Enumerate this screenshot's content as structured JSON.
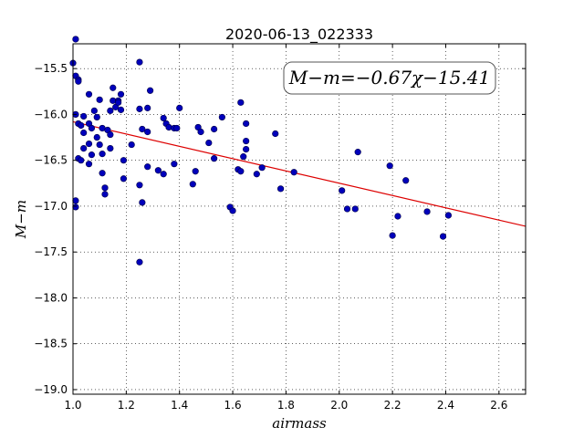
{
  "chart_data": {
    "type": "scatter",
    "title": "2020-06-13_022333",
    "xlabel": "airmass",
    "ylabel": "M−m",
    "xlim": [
      1.0,
      2.7
    ],
    "ylim": [
      -19.05,
      -15.23
    ],
    "x_ticks": [
      "1.0",
      "1.2",
      "1.4",
      "1.6",
      "1.8",
      "2.0",
      "2.2",
      "2.4",
      "2.6"
    ],
    "y_ticks": [
      "−15.5",
      "−16.0",
      "−16.5",
      "−17.0",
      "−17.5",
      "−18.0",
      "−18.5",
      "−19.0"
    ],
    "grid": true,
    "annotation": "M−m=−0.67χ−15.41",
    "fit": {
      "slope": -0.67,
      "intercept": -15.41,
      "x_range": [
        1.0,
        2.7
      ],
      "color": "#dd0000"
    },
    "point_color": "#0000bb",
    "points": [
      {
        "x": 1.0,
        "y": -15.44
      },
      {
        "x": 1.01,
        "y": -15.18
      },
      {
        "x": 1.01,
        "y": -15.58
      },
      {
        "x": 1.02,
        "y": -15.62
      },
      {
        "x": 1.02,
        "y": -15.64
      },
      {
        "x": 1.01,
        "y": -16.0
      },
      {
        "x": 1.02,
        "y": -16.1
      },
      {
        "x": 1.02,
        "y": -16.48
      },
      {
        "x": 1.01,
        "y": -16.94
      },
      {
        "x": 1.01,
        "y": -17.01
      },
      {
        "x": 1.03,
        "y": -16.12
      },
      {
        "x": 1.04,
        "y": -16.2
      },
      {
        "x": 1.03,
        "y": -16.5
      },
      {
        "x": 1.04,
        "y": -16.37
      },
      {
        "x": 1.04,
        "y": -16.02
      },
      {
        "x": 1.06,
        "y": -15.78
      },
      {
        "x": 1.06,
        "y": -16.1
      },
      {
        "x": 1.06,
        "y": -16.32
      },
      {
        "x": 1.06,
        "y": -16.54
      },
      {
        "x": 1.07,
        "y": -16.15
      },
      {
        "x": 1.07,
        "y": -16.44
      },
      {
        "x": 1.08,
        "y": -15.96
      },
      {
        "x": 1.09,
        "y": -16.03
      },
      {
        "x": 1.09,
        "y": -16.25
      },
      {
        "x": 1.1,
        "y": -16.33
      },
      {
        "x": 1.1,
        "y": -15.84
      },
      {
        "x": 1.11,
        "y": -16.15
      },
      {
        "x": 1.11,
        "y": -16.43
      },
      {
        "x": 1.11,
        "y": -16.64
      },
      {
        "x": 1.12,
        "y": -16.8
      },
      {
        "x": 1.12,
        "y": -16.87
      },
      {
        "x": 1.13,
        "y": -16.17
      },
      {
        "x": 1.14,
        "y": -16.22
      },
      {
        "x": 1.14,
        "y": -15.96
      },
      {
        "x": 1.14,
        "y": -16.37
      },
      {
        "x": 1.15,
        "y": -15.85
      },
      {
        "x": 1.15,
        "y": -15.71
      },
      {
        "x": 1.16,
        "y": -15.92
      },
      {
        "x": 1.17,
        "y": -15.85
      },
      {
        "x": 1.17,
        "y": -15.87
      },
      {
        "x": 1.18,
        "y": -15.95
      },
      {
        "x": 1.18,
        "y": -15.78
      },
      {
        "x": 1.19,
        "y": -16.5
      },
      {
        "x": 1.19,
        "y": -16.7
      },
      {
        "x": 1.22,
        "y": -16.33
      },
      {
        "x": 1.25,
        "y": -15.43
      },
      {
        "x": 1.25,
        "y": -15.94
      },
      {
        "x": 1.25,
        "y": -16.77
      },
      {
        "x": 1.25,
        "y": -17.61
      },
      {
        "x": 1.26,
        "y": -16.16
      },
      {
        "x": 1.26,
        "y": -16.96
      },
      {
        "x": 1.28,
        "y": -15.93
      },
      {
        "x": 1.28,
        "y": -16.19
      },
      {
        "x": 1.28,
        "y": -16.57
      },
      {
        "x": 1.29,
        "y": -15.74
      },
      {
        "x": 1.32,
        "y": -16.61
      },
      {
        "x": 1.34,
        "y": -16.04
      },
      {
        "x": 1.34,
        "y": -16.65
      },
      {
        "x": 1.35,
        "y": -16.1
      },
      {
        "x": 1.36,
        "y": -16.14
      },
      {
        "x": 1.38,
        "y": -16.15
      },
      {
        "x": 1.38,
        "y": -16.54
      },
      {
        "x": 1.39,
        "y": -16.15
      },
      {
        "x": 1.4,
        "y": -15.93
      },
      {
        "x": 1.45,
        "y": -16.76
      },
      {
        "x": 1.46,
        "y": -16.62
      },
      {
        "x": 1.47,
        "y": -16.14
      },
      {
        "x": 1.48,
        "y": -16.19
      },
      {
        "x": 1.51,
        "y": -16.31
      },
      {
        "x": 1.53,
        "y": -16.16
      },
      {
        "x": 1.53,
        "y": -16.48
      },
      {
        "x": 1.56,
        "y": -16.03
      },
      {
        "x": 1.59,
        "y": -17.01
      },
      {
        "x": 1.6,
        "y": -17.05
      },
      {
        "x": 1.62,
        "y": -16.6
      },
      {
        "x": 1.63,
        "y": -15.87
      },
      {
        "x": 1.63,
        "y": -16.62
      },
      {
        "x": 1.64,
        "y": -16.46
      },
      {
        "x": 1.65,
        "y": -16.1
      },
      {
        "x": 1.65,
        "y": -16.29
      },
      {
        "x": 1.65,
        "y": -16.38
      },
      {
        "x": 1.69,
        "y": -16.65
      },
      {
        "x": 1.71,
        "y": -16.58
      },
      {
        "x": 1.76,
        "y": -16.21
      },
      {
        "x": 1.78,
        "y": -16.81
      },
      {
        "x": 1.83,
        "y": -16.63
      },
      {
        "x": 2.01,
        "y": -16.83
      },
      {
        "x": 2.03,
        "y": -17.03
      },
      {
        "x": 2.06,
        "y": -17.03
      },
      {
        "x": 2.07,
        "y": -16.41
      },
      {
        "x": 2.19,
        "y": -16.56
      },
      {
        "x": 2.2,
        "y": -17.32
      },
      {
        "x": 2.22,
        "y": -17.11
      },
      {
        "x": 2.25,
        "y": -16.72
      },
      {
        "x": 2.33,
        "y": -17.06
      },
      {
        "x": 2.39,
        "y": -17.33
      },
      {
        "x": 2.41,
        "y": -17.1
      }
    ]
  }
}
